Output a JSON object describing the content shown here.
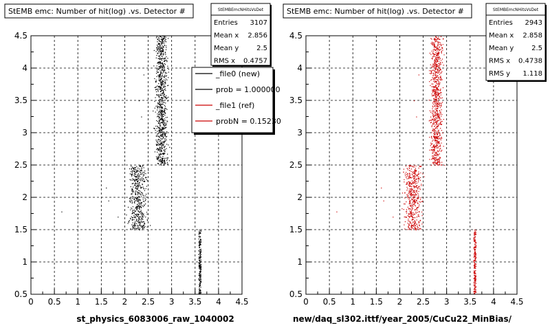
{
  "chart_data": [
    {
      "type": "scatter",
      "title": "StEMB emc: Number of hit(log) .vs. Detector #",
      "xlabel": "st_physics_6083006_raw_1040002",
      "xlim": [
        0,
        4.5
      ],
      "ylim": [
        0.5,
        4.5
      ],
      "xticks": [
        "0",
        "0.5",
        "1",
        "1.5",
        "2",
        "2.5",
        "3",
        "3.5",
        "4",
        "4.5"
      ],
      "yticks": [
        "0.5",
        "1",
        "1.5",
        "2",
        "2.5",
        "3",
        "3.5",
        "4",
        "4.5"
      ],
      "grid": true,
      "marker_color": "#000000",
      "clusters": [
        {
          "x_range": [
            2.55,
            3.0
          ],
          "y_range": [
            2.5,
            4.5
          ]
        },
        {
          "x_range": [
            1.95,
            2.6
          ],
          "y_range": [
            1.5,
            2.5
          ]
        },
        {
          "x_range": [
            3.57,
            3.62
          ],
          "y_range": [
            0.5,
            1.5
          ]
        }
      ],
      "stats": {
        "header": "StEMBEmcNHitsVsDet",
        "rows": [
          {
            "label": "Entries",
            "value": "3107"
          },
          {
            "label": "Mean x",
            "value": "2.856"
          },
          {
            "label": "Mean y",
            "value": "2.5"
          },
          {
            "label": "RMS x",
            "value": "0.4757"
          }
        ]
      },
      "legend": {
        "position": "top-right",
        "entries": [
          {
            "label": "_file0 (new)",
            "color": "#000000"
          },
          {
            "label": "prob = 1.000000",
            "color": "#000000"
          },
          {
            "label": "_file1 (ref)",
            "color": "#cc0000"
          },
          {
            "label": "probN = 0.15230",
            "color": "#cc0000"
          }
        ]
      }
    },
    {
      "type": "scatter",
      "title": "StEMB emc: Number of hit(log) .vs. Detector #",
      "xlabel": "new/daq_sl302.ittf/year_2005/CuCu22_MinBias/",
      "xlim": [
        0,
        4.5
      ],
      "ylim": [
        0.5,
        4.5
      ],
      "xticks": [
        "0",
        "0.5",
        "1",
        "1.5",
        "2",
        "2.5",
        "3",
        "3.5",
        "4",
        "4.5"
      ],
      "yticks": [
        "0.5",
        "1",
        "1.5",
        "2",
        "2.5",
        "3",
        "3.5",
        "4",
        "4.5"
      ],
      "grid": true,
      "marker_color": "#cc0000",
      "clusters": [
        {
          "x_range": [
            2.55,
            3.0
          ],
          "y_range": [
            2.5,
            4.5
          ]
        },
        {
          "x_range": [
            1.95,
            2.6
          ],
          "y_range": [
            1.5,
            2.5
          ]
        },
        {
          "x_range": [
            3.57,
            3.62
          ],
          "y_range": [
            0.5,
            1.5
          ]
        }
      ],
      "stats": {
        "header": "StEMBEmcNHitsVsDet",
        "rows": [
          {
            "label": "Entries",
            "value": "2943"
          },
          {
            "label": "Mean x",
            "value": "2.858"
          },
          {
            "label": "Mean y",
            "value": "2.5"
          },
          {
            "label": "RMS x",
            "value": "0.4738"
          },
          {
            "label": "RMS y",
            "value": "1.118"
          }
        ]
      }
    }
  ]
}
